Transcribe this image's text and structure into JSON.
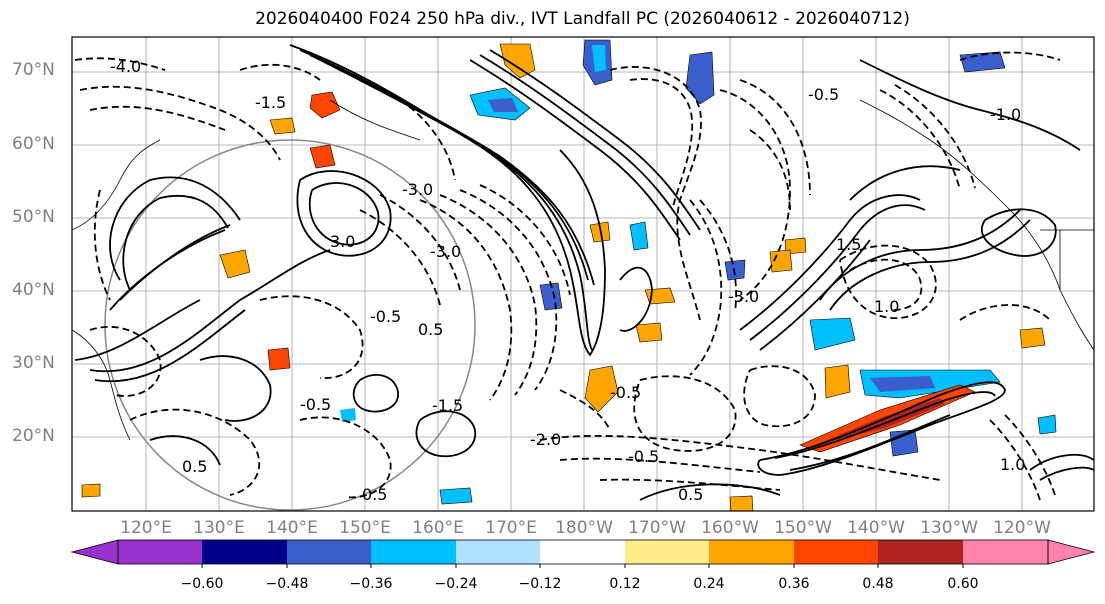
{
  "title": "2026040400 F024 250 hPa div., IVT Landfall PC (2026040612 - 2026040712)",
  "lat_labels": [
    "70°N",
    "60°N",
    "50°N",
    "40°N",
    "30°N",
    "20°N"
  ],
  "lon_labels": [
    "120°E",
    "130°E",
    "140°E",
    "150°E",
    "160°E",
    "170°E",
    "180°W",
    "170°W",
    "160°W",
    "150°W",
    "140°W",
    "130°W",
    "120°W"
  ],
  "contour_labels": [
    "-4.0",
    "-1.5",
    "-3.0",
    "3.0",
    "-3.0",
    "-0.5",
    "0.5",
    "-0.5",
    "-2.0",
    "-3.0",
    "1.5",
    "1.0",
    "-1.0",
    "-0.5",
    "0.5",
    "-0.5",
    "-0.5",
    "1.0",
    "-1.5",
    "0.5",
    "0.5"
  ],
  "colorbar": {
    "ticks": [
      "−0.60",
      "−0.48",
      "−0.36",
      "−0.24",
      "−0.12",
      "0.12",
      "0.24",
      "0.36",
      "0.48",
      "0.60"
    ],
    "colors": [
      "#9932cc",
      "#00008b",
      "#3a5fcd",
      "#00bfff",
      "#b0e2ff",
      "#ffffff",
      "#ffec8b",
      "#ffa500",
      "#ff4500",
      "#b22222",
      "#ff82ab"
    ]
  }
}
